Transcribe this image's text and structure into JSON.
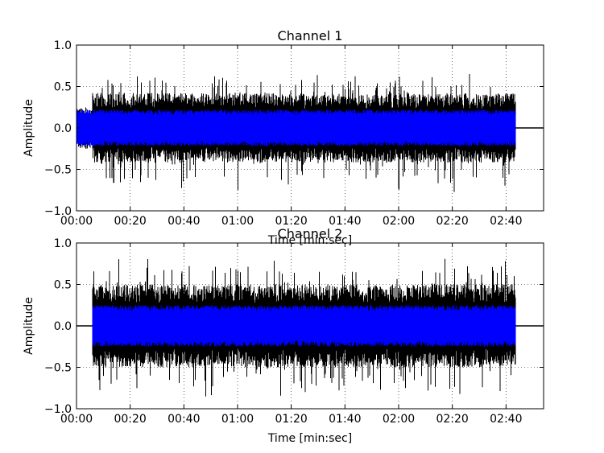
{
  "chart_data": [
    {
      "type": "line",
      "title": "Channel 1",
      "xlabel": "Time [min:sec]",
      "ylabel": "Amplitude",
      "xlim": [
        0,
        174
      ],
      "ylim": [
        -1.0,
        1.0
      ],
      "x_ticks": [
        0,
        20,
        40,
        60,
        80,
        100,
        120,
        140,
        160
      ],
      "x_tick_labels": [
        "00:00",
        "00:20",
        "00:40",
        "01:00",
        "01:20",
        "01:40",
        "02:00",
        "02:20",
        "02:40"
      ],
      "y_ticks": [
        1.0,
        0.5,
        0.0,
        -0.5,
        -1.0
      ],
      "y_tick_labels": [
        "1.0",
        "0.5",
        "0.0",
        "−0.5",
        "−1.0"
      ],
      "grid": true,
      "signal_start": 0,
      "signal_end": 163.5,
      "series": [
        {
          "role": "envelope",
          "color": "#000000",
          "segments": [
            {
              "x": [
                0,
                6
              ],
              "min": -0.25,
              "max": 0.25
            },
            {
              "x": [
                6,
                163.5
              ],
              "min": -0.78,
              "max": 0.66
            }
          ],
          "typical_min": -0.42,
          "typical_max": 0.42
        },
        {
          "role": "rms",
          "color": "#0000ff",
          "min": -0.22,
          "max": 0.22
        }
      ]
    },
    {
      "type": "line",
      "title": "Channel 2",
      "xlabel": "Time [min:sec]",
      "ylabel": "Amplitude",
      "xlim": [
        0,
        174
      ],
      "ylim": [
        -1.0,
        1.0
      ],
      "x_ticks": [
        0,
        20,
        40,
        60,
        80,
        100,
        120,
        140,
        160
      ],
      "x_tick_labels": [
        "00:00",
        "00:20",
        "00:40",
        "01:00",
        "01:20",
        "01:40",
        "02:00",
        "02:20",
        "02:40"
      ],
      "y_ticks": [
        1.0,
        0.5,
        0.0,
        -0.5,
        -1.0
      ],
      "y_tick_labels": [
        "1.0",
        "0.5",
        "0.0",
        "−0.5",
        "−1.0"
      ],
      "grid": true,
      "signal_start": 6,
      "signal_end": 163.5,
      "series": [
        {
          "role": "envelope",
          "color": "#000000",
          "segments": [
            {
              "x": [
                6,
                163.5
              ],
              "min": -0.86,
              "max": 0.82
            }
          ],
          "typical_min": -0.5,
          "typical_max": 0.5
        },
        {
          "role": "rms",
          "color": "#0000ff",
          "min": -0.25,
          "max": 0.25
        }
      ]
    }
  ]
}
